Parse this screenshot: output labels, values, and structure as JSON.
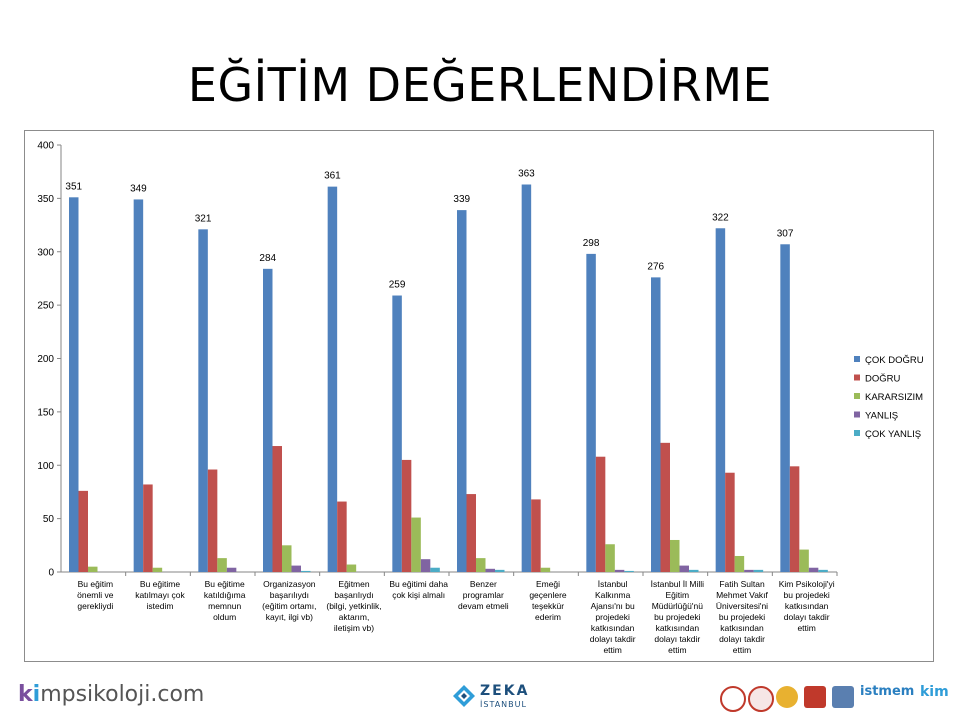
{
  "slide": {
    "title": "EĞİTİM DEĞERLENDİRME"
  },
  "footer": {
    "brand_text": "kimpsikoloji.com",
    "brand_k": "k",
    "brand_i": "i",
    "brand_rest": "mpsikoloji.com",
    "zeka_name": "ZEKA",
    "zeka_sub": "İSTANBUL",
    "istmem": "istmem",
    "kim_small": "kim"
  },
  "colors": {
    "cok_dogru": "#4F81BD",
    "dogru": "#C0504D",
    "kararsizim": "#9BBB59",
    "yanlis": "#8064A2",
    "cok_yanlis": "#4BACC6"
  },
  "chart_data": {
    "type": "bar",
    "title": "",
    "ylim": [
      0,
      400
    ],
    "yticks": [
      0,
      50,
      100,
      150,
      200,
      250,
      300,
      350,
      400
    ],
    "grid": false,
    "legend_position": "right",
    "categories": [
      [
        "Bu eğitim",
        "önemli ve",
        "gerekliydi"
      ],
      [
        "Bu eğitime",
        "katılmayı çok",
        "istedim"
      ],
      [
        "Bu eğitime",
        "katıldığıma",
        "memnun",
        "oldum"
      ],
      [
        "Organizasyon",
        "başarılıydı",
        "(eğitim ortamı,",
        "kayıt, ilgi vb)"
      ],
      [
        "Eğitmen",
        "başarılıydı",
        "(bilgi, yetkinlik,",
        "aktarım,",
        "iletişim vb)"
      ],
      [
        "Bu eğitimi daha",
        "çok kişi almalı"
      ],
      [
        "Benzer",
        "programlar",
        "devam etmeli"
      ],
      [
        "Emeği",
        "geçenlere",
        "teşekkür",
        "ederim"
      ],
      [
        "İstanbul",
        "Kalkınma",
        "Ajansı'nı bu",
        "projedeki",
        "katkısından",
        "dolayı takdir",
        "ettim"
      ],
      [
        "İstanbul İl Milli",
        "Eğitim",
        "Müdürlüğü'nü",
        "bu projedeki",
        "katkısından",
        "dolayı takdir",
        "ettim"
      ],
      [
        "Fatih Sultan",
        "Mehmet Vakıf",
        "Üniversitesi'ni",
        "bu projedeki",
        "katkısından",
        "dolayı takdir",
        "ettim"
      ],
      [
        "Kim Psikoloji'yi",
        "bu projedeki",
        "katkısından",
        "dolayı takdir",
        "ettim"
      ]
    ],
    "series": [
      {
        "name": "ÇOK DOĞRU",
        "color": "#4F81BD",
        "values": [
          351,
          349,
          321,
          284,
          361,
          259,
          339,
          363,
          298,
          276,
          322,
          307
        ],
        "labels": [
          "351",
          "349",
          "321",
          "284",
          "361",
          "259",
          "339",
          "363",
          "298",
          "276",
          "322",
          "307"
        ]
      },
      {
        "name": "DOĞRU",
        "color": "#C0504D",
        "values": [
          76,
          82,
          96,
          118,
          66,
          105,
          73,
          68,
          108,
          121,
          93,
          99
        ]
      },
      {
        "name": "KARARSIZIM",
        "color": "#9BBB59",
        "values": [
          5,
          4,
          13,
          25,
          7,
          51,
          13,
          4,
          26,
          30,
          15,
          21
        ]
      },
      {
        "name": "YANLIŞ",
        "color": "#8064A2",
        "values": [
          0,
          0,
          4,
          6,
          0,
          12,
          3,
          0,
          2,
          6,
          2,
          4
        ]
      },
      {
        "name": "ÇOK YANLIŞ",
        "color": "#4BACC6",
        "values": [
          0,
          0,
          0,
          1,
          0,
          4,
          2,
          0,
          1,
          2,
          2,
          2
        ]
      }
    ]
  }
}
